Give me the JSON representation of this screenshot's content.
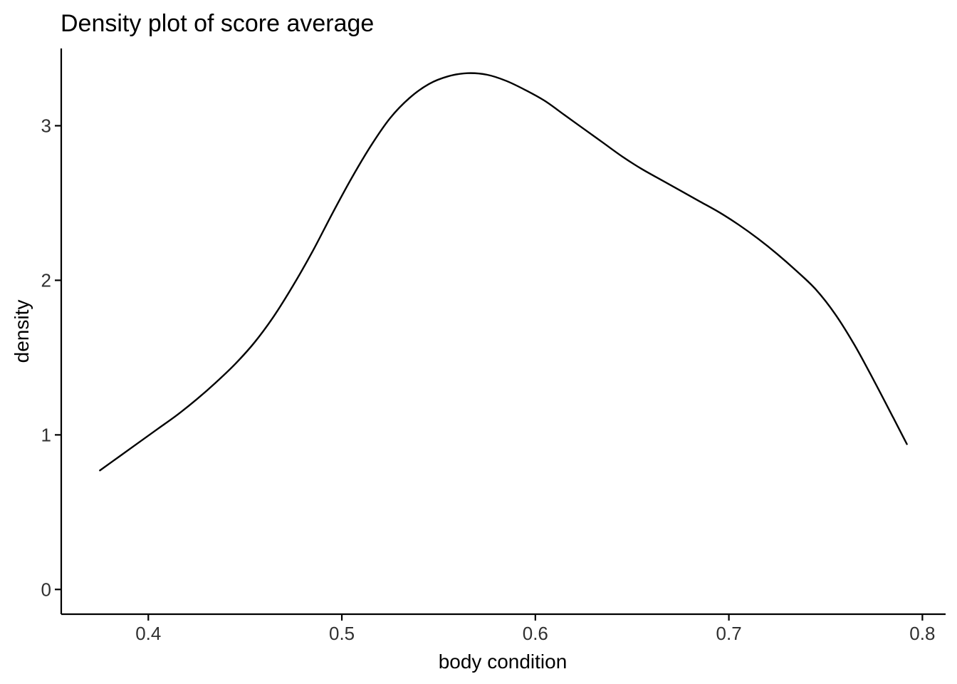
{
  "chart_data": {
    "type": "line",
    "title": "Density plot of score average",
    "xlabel": "body condition",
    "ylabel": "density",
    "xlim": [
      0.355,
      0.812
    ],
    "ylim": [
      -0.16,
      3.5
    ],
    "x_ticks": [
      0.4,
      0.5,
      0.6,
      0.7,
      0.8
    ],
    "x_tick_labels": [
      "0.4",
      "0.5",
      "0.6",
      "0.7",
      "0.8"
    ],
    "y_ticks": [
      0,
      1,
      2,
      3
    ],
    "y_tick_labels": [
      "0",
      "1",
      "2",
      "3"
    ],
    "grid": false,
    "legend": "none",
    "line_color": "#000000",
    "series": [
      {
        "x": [
          0.375,
          0.385,
          0.395,
          0.405,
          0.415,
          0.425,
          0.435,
          0.445,
          0.455,
          0.465,
          0.475,
          0.485,
          0.495,
          0.505,
          0.515,
          0.525,
          0.535,
          0.545,
          0.555,
          0.565,
          0.575,
          0.585,
          0.595,
          0.605,
          0.615,
          0.625,
          0.635,
          0.645,
          0.655,
          0.665,
          0.675,
          0.685,
          0.695,
          0.705,
          0.715,
          0.725,
          0.735,
          0.745,
          0.755,
          0.765,
          0.775,
          0.785,
          0.792
        ],
        "y": [
          0.77,
          0.86,
          0.95,
          1.04,
          1.13,
          1.23,
          1.34,
          1.46,
          1.6,
          1.77,
          1.97,
          2.19,
          2.43,
          2.66,
          2.87,
          3.05,
          3.18,
          3.27,
          3.32,
          3.34,
          3.33,
          3.29,
          3.23,
          3.16,
          3.07,
          2.98,
          2.89,
          2.8,
          2.72,
          2.65,
          2.58,
          2.51,
          2.44,
          2.36,
          2.27,
          2.17,
          2.06,
          1.94,
          1.78,
          1.58,
          1.35,
          1.11,
          0.94
        ]
      }
    ]
  }
}
